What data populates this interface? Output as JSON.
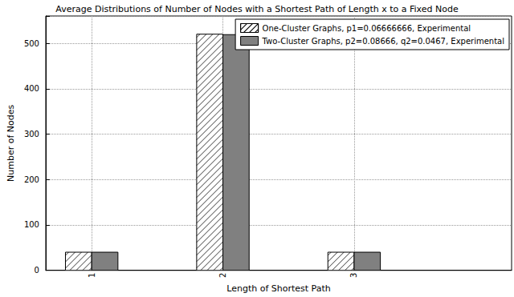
{
  "chart_data": {
    "type": "bar",
    "title": "Average Distributions of Number of Nodes with a Shortest Path of Length x to a Fixed Node",
    "x_label": "Length of Shortest Path",
    "y_label": "Number of Nodes",
    "x": [
      1,
      2,
      3
    ],
    "series": [
      {
        "name": "One-Cluster Graphs, p1=0.06666666, Experimental",
        "color": "#ffffff",
        "marker": "hatch",
        "values": [
          40,
          520,
          40
        ]
      },
      {
        "name": "Two-Cluster Graphs, p2=0.08666, q2=0.0467, Experimental",
        "color": "#808080",
        "values": [
          40,
          519,
          40
        ]
      }
    ],
    "xlim": [
      0.65,
      4.2
    ],
    "xticks": [
      1,
      2,
      3
    ],
    "ylim": [
      0,
      560
    ],
    "yticks": [
      0,
      100,
      200,
      300,
      400,
      500
    ],
    "grid": true,
    "legend": "upper right"
  }
}
